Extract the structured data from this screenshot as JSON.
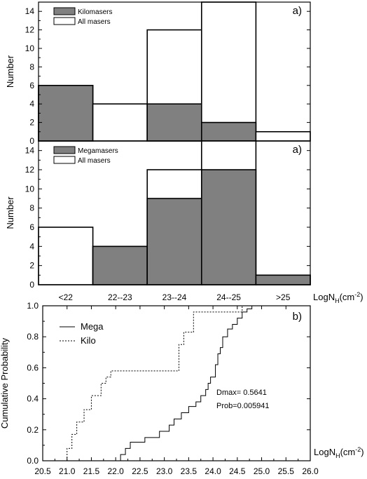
{
  "chart_data": [
    {
      "type": "bar",
      "panel_label": "a)",
      "categories": [
        "<22",
        "22--23",
        "23--24",
        "24--25",
        ">25"
      ],
      "series": [
        {
          "name": "Kilomasers",
          "values": [
            6,
            0,
            4,
            2,
            0
          ],
          "color": "#808080"
        },
        {
          "name": "All masers",
          "values": [
            6,
            4,
            12,
            15,
            1
          ],
          "color": "#ffffff"
        }
      ],
      "ylabel": "Number",
      "ylim": [
        0,
        15
      ],
      "yticks": [
        "0",
        "2",
        "4",
        "6",
        "8",
        "10",
        "12",
        "14"
      ],
      "legend": "top-left"
    },
    {
      "type": "bar",
      "panel_label": "a)",
      "categories": [
        "<22",
        "22--23",
        "23--24",
        "24--25",
        ">25"
      ],
      "series": [
        {
          "name": "Megamasers",
          "values": [
            0,
            4,
            9,
            12,
            1
          ],
          "color": "#808080"
        },
        {
          "name": "All masers",
          "values": [
            6,
            4,
            12,
            15,
            1
          ],
          "color": "#ffffff"
        }
      ],
      "ylabel": "Number",
      "ylim": [
        0,
        15
      ],
      "yticks": [
        "0",
        "2",
        "4",
        "6",
        "8",
        "10",
        "12",
        "14"
      ],
      "xlabel_main": "LogN",
      "xlabel_sub": "H",
      "xlabel_unit": "(cm",
      "xlabel_exp": "-2",
      "xlabel_close": ")",
      "legend": "top-left"
    },
    {
      "type": "line",
      "panel_label": "b)",
      "ylabel": "Cumulative Probability",
      "xlabel_main": "LogN",
      "xlabel_sub": "H",
      "xlabel_unit": "(cm",
      "xlabel_exp": "-2",
      "xlabel_close": ")",
      "xlim": [
        20.5,
        26.0
      ],
      "ylim": [
        0.0,
        1.0
      ],
      "xticks": [
        "20.5",
        "21.0",
        "21.5",
        "22.0",
        "22.5",
        "23.0",
        "23.5",
        "24.0",
        "24.5",
        "25.0",
        "25.5",
        "26.0"
      ],
      "yticks": [
        "0.0",
        "0.2",
        "0.4",
        "0.6",
        "0.8",
        "1.0"
      ],
      "legend": "top-left",
      "annotations": [
        "Dmax= 0.5641",
        "Prob=0.005941"
      ],
      "series": [
        {
          "name": "Mega",
          "style": "solid",
          "x": [
            22.1,
            22.2,
            22.3,
            22.6,
            22.9,
            23.1,
            23.2,
            23.35,
            23.5,
            23.65,
            23.75,
            23.85,
            23.9,
            23.95,
            24.05,
            24.1,
            24.15,
            24.2,
            24.3,
            24.4,
            24.5,
            24.6,
            24.7,
            24.8
          ],
          "y": [
            0.04,
            0.08,
            0.12,
            0.15,
            0.19,
            0.23,
            0.27,
            0.31,
            0.35,
            0.38,
            0.42,
            0.46,
            0.5,
            0.54,
            0.62,
            0.69,
            0.73,
            0.8,
            0.85,
            0.88,
            0.92,
            0.96,
            0.98,
            1.0
          ]
        },
        {
          "name": "Kilo",
          "style": "dotted",
          "x": [
            21.0,
            21.1,
            21.2,
            21.35,
            21.5,
            21.7,
            21.8,
            21.9,
            22.1,
            23.3,
            23.4,
            23.6,
            24.6
          ],
          "y": [
            0.08,
            0.17,
            0.25,
            0.33,
            0.42,
            0.5,
            0.54,
            0.58,
            0.58,
            0.75,
            0.83,
            0.96,
            1.0
          ]
        }
      ]
    }
  ]
}
